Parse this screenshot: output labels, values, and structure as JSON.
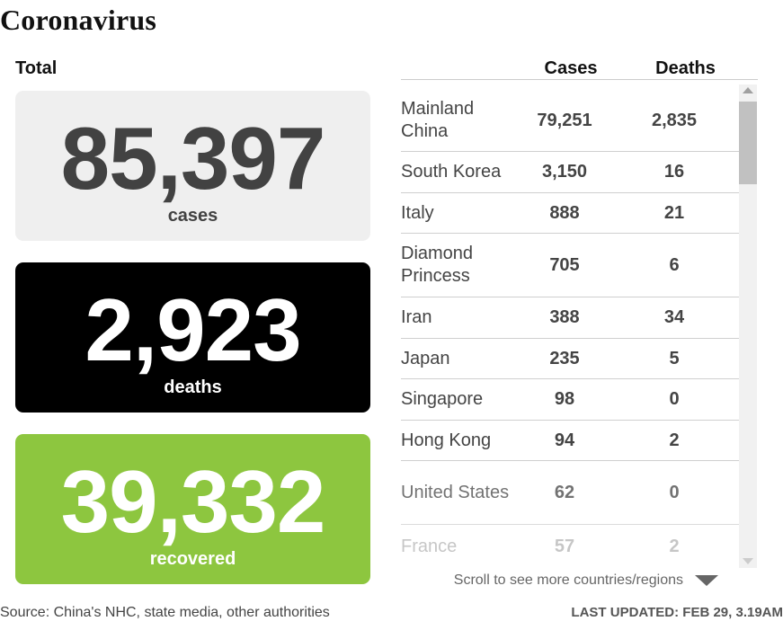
{
  "title": "Coronavirus",
  "total_label": "Total",
  "stats": {
    "cases": {
      "value": "85,397",
      "label": "cases"
    },
    "deaths": {
      "value": "2,923",
      "label": "deaths"
    },
    "recovered": {
      "value": "39,332",
      "label": "recovered"
    }
  },
  "colors": {
    "cases_bg": "#efefef",
    "deaths_bg": "#000000",
    "recovered_bg": "#8dc63f"
  },
  "table": {
    "headers": {
      "cases": "Cases",
      "deaths": "Deaths"
    },
    "rows": [
      {
        "country": "Mainland China",
        "cases": "79,251",
        "deaths": "2,835"
      },
      {
        "country": "South Korea",
        "cases": "3,150",
        "deaths": "16"
      },
      {
        "country": "Italy",
        "cases": "888",
        "deaths": "21"
      },
      {
        "country": "Diamond Princess",
        "cases": "705",
        "deaths": "6"
      },
      {
        "country": "Iran",
        "cases": "388",
        "deaths": "34"
      },
      {
        "country": "Japan",
        "cases": "235",
        "deaths": "5"
      },
      {
        "country": "Singapore",
        "cases": "98",
        "deaths": "0"
      },
      {
        "country": "Hong Kong",
        "cases": "94",
        "deaths": "2"
      },
      {
        "country": "United States",
        "cases": "62",
        "deaths": "0"
      },
      {
        "country": "France",
        "cases": "57",
        "deaths": "2"
      }
    ]
  },
  "scroll_hint": "Scroll to see more countries/regions",
  "source": "Source: China's NHC, state media, other authorities",
  "last_updated": "LAST UPDATED: FEB 29, 3.19AM"
}
